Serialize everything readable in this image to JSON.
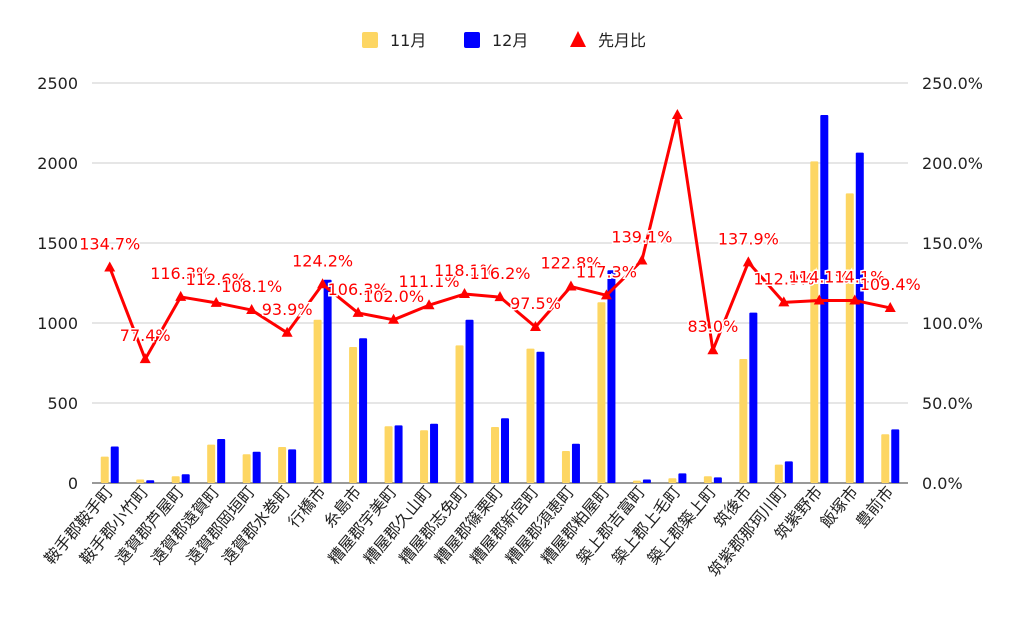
{
  "chart_data": {
    "type": "bar",
    "categories": [
      "鞍手郡鞍手町",
      "鞍手郡小竹町",
      "遠賀郡芦屋町",
      "遠賀郡遠賀町",
      "遠賀郡岡垣町",
      "遠賀郡水巻町",
      "行橋市",
      "糸島市",
      "糟屋郡宇美町",
      "糟屋郡久山町",
      "糟屋郡志免町",
      "糟屋郡篠栗町",
      "糟屋郡新宮町",
      "糟屋郡須恵町",
      "糟屋郡粕屋町",
      "築上郡吉富町",
      "築上郡上毛町",
      "築上郡築上町",
      "筑後市",
      "筑紫郡那珂川町",
      "筑紫野市",
      "飯塚市",
      "豊前市"
    ],
    "series": [
      {
        "name": "11月",
        "type": "bar",
        "axis": "left",
        "color": "#fdd663",
        "values": [
          165,
          22,
          42,
          240,
          180,
          225,
          1020,
          850,
          355,
          330,
          860,
          350,
          840,
          200,
          1130,
          15,
          30,
          42,
          775,
          115,
          2010,
          1810,
          305
        ]
      },
      {
        "name": "12月",
        "type": "bar",
        "axis": "left",
        "color": "#0000ff",
        "values": [
          228,
          17,
          55,
          275,
          195,
          210,
          1270,
          905,
          360,
          370,
          1020,
          405,
          820,
          245,
          1330,
          22,
          60,
          35,
          1065,
          135,
          2300,
          2065,
          335
        ]
      },
      {
        "name": "先月比",
        "type": "line",
        "axis": "right",
        "color": "#ff0000",
        "values": [
          134.7,
          77.4,
          116.3,
          112.6,
          108.1,
          93.9,
          124.2,
          106.3,
          102.0,
          111.1,
          118.1,
          116.2,
          97.5,
          122.8,
          117.3,
          139.1,
          230.0,
          83.0,
          137.9,
          112.9,
          114.1,
          114.1,
          109.4
        ],
        "labels": [
          "134.7%",
          "77.4%",
          "116.3%",
          "112.6%",
          "108.1%",
          "93.9%",
          "124.2%",
          "106.3%",
          "102.0%",
          "111.1%",
          "118.1%",
          "116.2%",
          "97.5%",
          "122.8%",
          "117.3%",
          "139.1%",
          "",
          "83.0%",
          "137.9%",
          "112.9%",
          "114.1%",
          "114.1%",
          "109.4%"
        ]
      }
    ],
    "y_left": {
      "min": 0,
      "max": 2500,
      "ticks": [
        "0",
        "500",
        "1000",
        "1500",
        "2000",
        "2500"
      ]
    },
    "y_right": {
      "min": 0,
      "max": 250,
      "ticks": [
        "0.0%",
        "50.0%",
        "100.0%",
        "150.0%",
        "200.0%",
        "250.0%"
      ]
    },
    "grid": true,
    "legend_position": "top"
  }
}
